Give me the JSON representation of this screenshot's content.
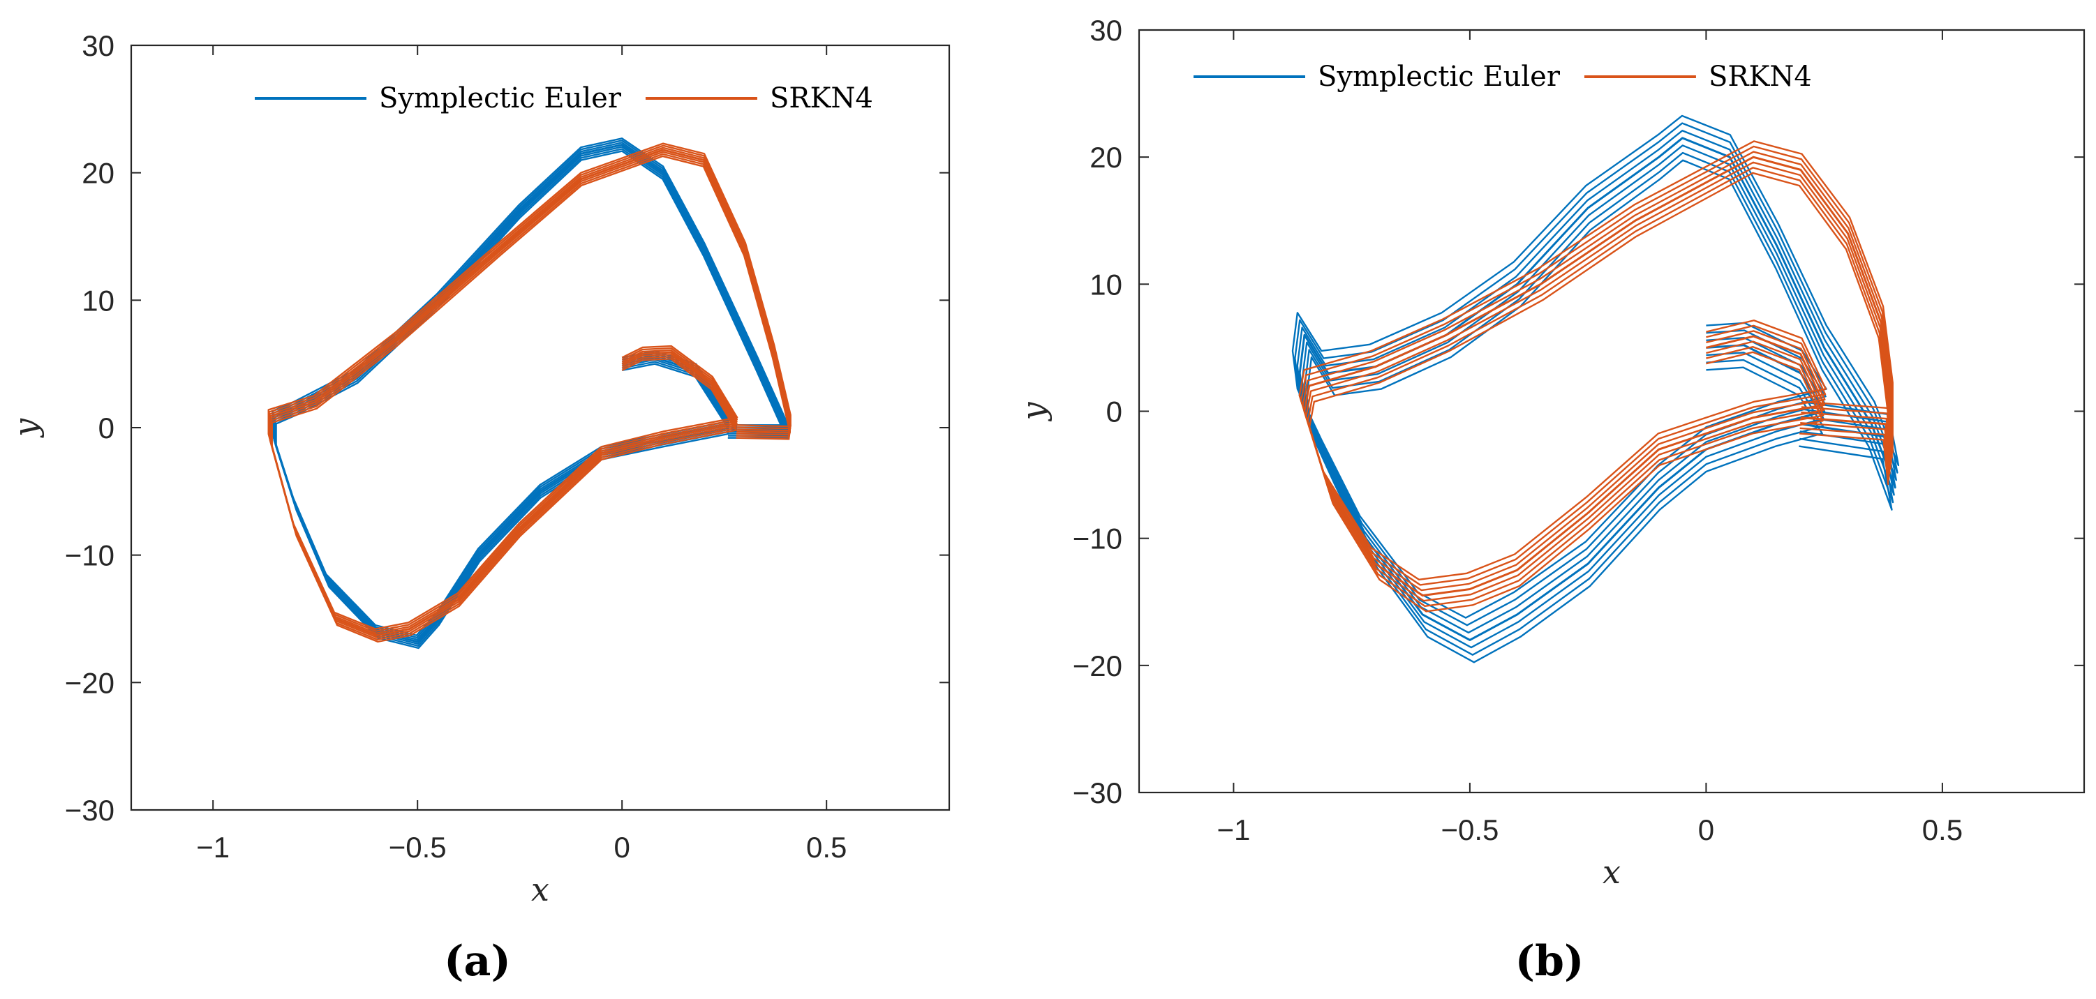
{
  "colors": {
    "symplectic_euler": "#0072BD",
    "srkn4": "#D95319",
    "axis": "#262626"
  },
  "chart_data": [
    {
      "id": "a",
      "type": "line",
      "panel_label": "(a)",
      "xlabel": "x",
      "ylabel": "y",
      "xlim": [
        -1.2,
        0.8
      ],
      "ylim": [
        -30,
        30
      ],
      "xticks": [
        -1,
        -0.5,
        0,
        0.5
      ],
      "xtick_labels": [
        "−1",
        "−0.5",
        "0",
        "0.5"
      ],
      "yticks": [
        -30,
        -20,
        -10,
        0,
        10,
        20,
        30
      ],
      "ytick_labels": [
        "−30",
        "−20",
        "−10",
        "0",
        "10",
        "20",
        "30"
      ],
      "legend": {
        "position": "top-right",
        "orientation": "horizontal",
        "entries": [
          "Symplectic Euler",
          "SRKN4"
        ]
      },
      "series": [
        {
          "name": "Symplectic Euler",
          "color": "#0072BD",
          "band_width": 1.0,
          "points": [
            [
              0.0,
              5.0
            ],
            [
              0.08,
              5.5
            ],
            [
              0.18,
              4.5
            ],
            [
              0.26,
              0.5
            ],
            [
              0.26,
              0.0
            ],
            [
              0.1,
              -1.0
            ],
            [
              -0.05,
              -2.0
            ],
            [
              -0.2,
              -5.0
            ],
            [
              -0.35,
              -10.0
            ],
            [
              -0.45,
              -15.0
            ],
            [
              -0.5,
              -16.8
            ],
            [
              -0.6,
              -16.0
            ],
            [
              -0.72,
              -12.0
            ],
            [
              -0.8,
              -6.0
            ],
            [
              -0.85,
              -1.0
            ],
            [
              -0.85,
              0.8
            ],
            [
              -0.8,
              1.5
            ],
            [
              -0.65,
              4.0
            ],
            [
              -0.45,
              10.0
            ],
            [
              -0.25,
              17.0
            ],
            [
              -0.1,
              21.5
            ],
            [
              0.0,
              22.2
            ],
            [
              0.1,
              20.0
            ],
            [
              0.2,
              14.0
            ],
            [
              0.33,
              5.0
            ],
            [
              0.4,
              0.0
            ],
            [
              0.41,
              -0.3
            ],
            [
              0.26,
              -0.3
            ]
          ]
        },
        {
          "name": "SRKN4",
          "color": "#D95319",
          "band_width": 1.0,
          "points": [
            [
              0.0,
              5.0
            ],
            [
              0.05,
              5.8
            ],
            [
              0.12,
              5.9
            ],
            [
              0.22,
              3.5
            ],
            [
              0.28,
              0.3
            ],
            [
              0.1,
              -0.8
            ],
            [
              -0.05,
              -2.0
            ],
            [
              -0.25,
              -8.0
            ],
            [
              -0.4,
              -13.5
            ],
            [
              -0.52,
              -15.8
            ],
            [
              -0.6,
              -16.3
            ],
            [
              -0.7,
              -15.0
            ],
            [
              -0.8,
              -8.0
            ],
            [
              -0.86,
              -1.0
            ],
            [
              -0.86,
              0.9
            ],
            [
              -0.75,
              2.0
            ],
            [
              -0.55,
              7.0
            ],
            [
              -0.3,
              14.0
            ],
            [
              -0.1,
              19.5
            ],
            [
              0.1,
              21.8
            ],
            [
              0.2,
              21.0
            ],
            [
              0.3,
              14.0
            ],
            [
              0.37,
              6.0
            ],
            [
              0.41,
              0.5
            ],
            [
              0.41,
              -0.4
            ],
            [
              0.28,
              -0.3
            ]
          ]
        }
      ]
    },
    {
      "id": "b",
      "type": "line",
      "panel_label": "(b)",
      "xlabel": "x",
      "ylabel": "y",
      "xlim": [
        -1.2,
        0.8
      ],
      "ylim": [
        -30,
        30
      ],
      "xticks": [
        -1,
        -0.5,
        0,
        0.5
      ],
      "xtick_labels": [
        "−1",
        "−0.5",
        "0",
        "0.5"
      ],
      "yticks": [
        -30,
        -20,
        -10,
        0,
        10,
        20,
        30
      ],
      "ytick_labels": [
        "−30",
        "−20",
        "−10",
        "0",
        "10",
        "20",
        "30"
      ],
      "legend": {
        "position": "top-left",
        "orientation": "horizontal",
        "entries": [
          "Symplectic Euler",
          "SRKN4"
        ]
      },
      "series": [
        {
          "name": "Symplectic Euler",
          "color": "#0072BD",
          "band_width": 3.5,
          "points": [
            [
              0.0,
              5.0
            ],
            [
              0.08,
              5.2
            ],
            [
              0.2,
              3.0
            ],
            [
              0.25,
              0.0
            ],
            [
              0.15,
              -1.0
            ],
            [
              0.0,
              -3.0
            ],
            [
              -0.1,
              -6.0
            ],
            [
              -0.25,
              -12.0
            ],
            [
              -0.4,
              -16.0
            ],
            [
              -0.5,
              -18.0
            ],
            [
              -0.6,
              -16.0
            ],
            [
              -0.72,
              -10.0
            ],
            [
              -0.8,
              -4.0
            ],
            [
              -0.85,
              0.0
            ],
            [
              -0.86,
              3.0
            ],
            [
              -0.85,
              6.0
            ],
            [
              -0.8,
              3.0
            ],
            [
              -0.7,
              3.5
            ],
            [
              -0.55,
              6.0
            ],
            [
              -0.4,
              10.0
            ],
            [
              -0.25,
              16.0
            ],
            [
              -0.1,
              20.0
            ],
            [
              -0.05,
              21.5
            ],
            [
              0.05,
              20.0
            ],
            [
              0.15,
              13.0
            ],
            [
              0.25,
              5.0
            ],
            [
              0.35,
              -1.0
            ],
            [
              0.4,
              -6.0
            ],
            [
              0.38,
              -2.0
            ],
            [
              0.2,
              -1.0
            ]
          ]
        },
        {
          "name": "SRKN4",
          "color": "#D95319",
          "band_width": 2.5,
          "points": [
            [
              0.0,
              5.0
            ],
            [
              0.1,
              5.9
            ],
            [
              0.2,
              4.5
            ],
            [
              0.25,
              0.5
            ],
            [
              0.1,
              -0.5
            ],
            [
              -0.1,
              -3.0
            ],
            [
              -0.25,
              -8.0
            ],
            [
              -0.4,
              -12.5
            ],
            [
              -0.5,
              -14.0
            ],
            [
              -0.6,
              -14.5
            ],
            [
              -0.7,
              -12.0
            ],
            [
              -0.8,
              -6.0
            ],
            [
              -0.85,
              0.0
            ],
            [
              -0.84,
              2.0
            ],
            [
              -0.7,
              3.5
            ],
            [
              -0.55,
              6.0
            ],
            [
              -0.35,
              10.0
            ],
            [
              -0.15,
              15.0
            ],
            [
              0.0,
              18.0
            ],
            [
              0.1,
              20.0
            ],
            [
              0.2,
              19.0
            ],
            [
              0.3,
              14.0
            ],
            [
              0.37,
              7.0
            ],
            [
              0.39,
              1.0
            ],
            [
              0.39,
              -4.5
            ],
            [
              0.38,
              -1.0
            ],
            [
              0.2,
              -0.5
            ]
          ]
        }
      ]
    }
  ]
}
